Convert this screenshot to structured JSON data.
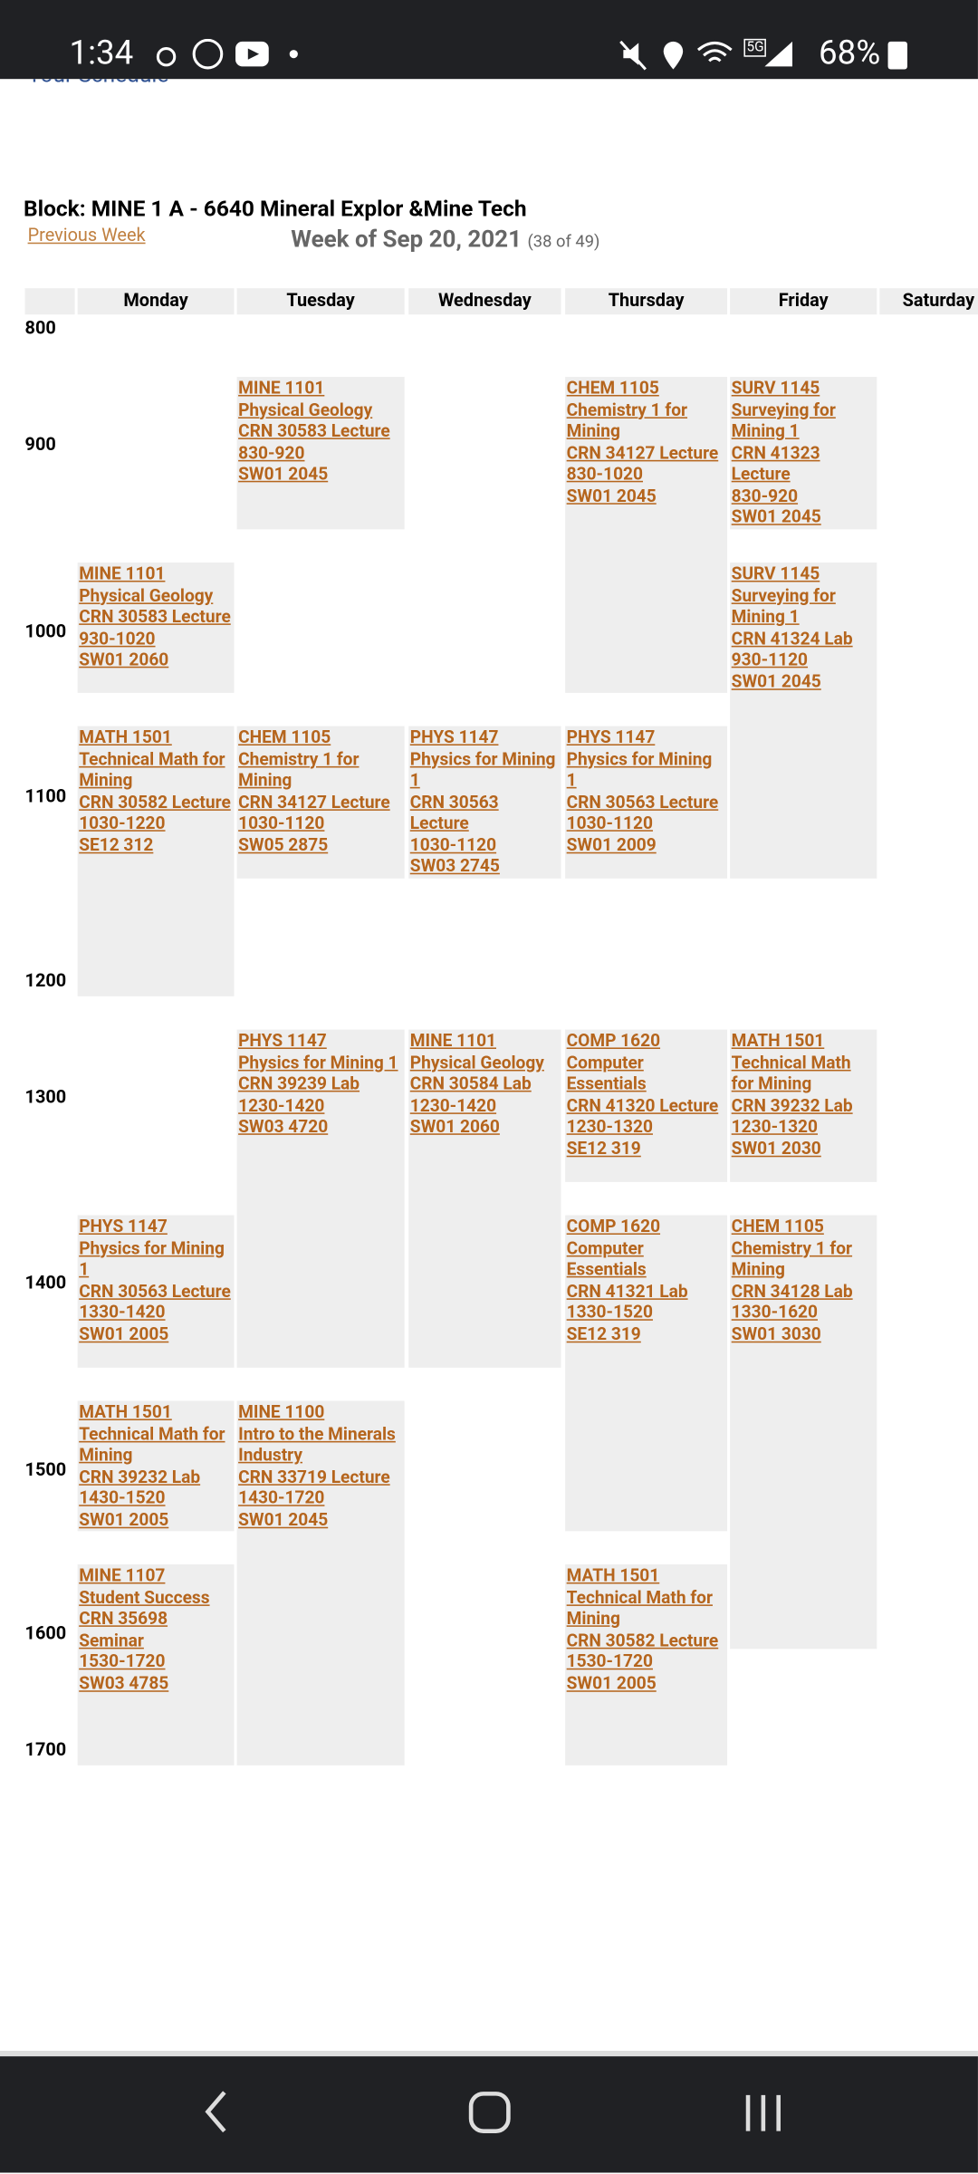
{
  "status_bar": {
    "time": "1:34",
    "network": "5G",
    "battery": "68%"
  },
  "header": {
    "partial_title": "Your Schedule",
    "block": "Block: MINE 1 A - 6640 Mineral Explor &Mine Tech",
    "previous_week": "Previous Week",
    "week": "Week of Sep 20, 2021",
    "week_count": "(38 of 49)"
  },
  "hours": [
    "800",
    "900",
    "1000",
    "1100",
    "1200",
    "1300",
    "1400",
    "1500",
    "1600",
    "1700"
  ],
  "days": [
    {
      "name": "Monday",
      "events": [
        [
          "MINE 1101",
          "Physical Geology",
          "CRN 30583 Lecture",
          "930-1020",
          "SW01 2060"
        ],
        [
          "MATH 1501",
          "Technical Math for Mining",
          "CRN 30582 Lecture",
          "1030-1220",
          "SE12 312"
        ],
        [
          "PHYS 1147",
          "Physics for Mining 1",
          "CRN 30563 Lecture",
          "1330-1420",
          "SW01 2005"
        ],
        [
          "MATH 1501",
          "Technical Math for Mining",
          "CRN 39232 Lab",
          "1430-1520",
          "SW01 2005"
        ],
        [
          "MINE 1107",
          "Student Success",
          "CRN 35698 Seminar",
          "1530-1720",
          "SW03 4785"
        ]
      ]
    },
    {
      "name": "Tuesday",
      "events": [
        [
          "MINE 1101",
          "Physical Geology",
          "CRN 30583 Lecture",
          "830-920",
          "SW01 2045"
        ],
        [
          "CHEM 1105",
          "Chemistry 1 for Mining",
          "CRN 34127 Lecture",
          "1030-1120",
          "SW05 2875"
        ],
        [
          "PHYS 1147",
          "Physics for Mining 1",
          "CRN 39239 Lab",
          "1230-1420",
          "SW03 4720"
        ],
        [
          "MINE 1100",
          "Intro to the Minerals Industry",
          "CRN 33719 Lecture",
          "1430-1720",
          "SW01 2045"
        ]
      ]
    },
    {
      "name": "Wednesday",
      "events": [
        [
          "PHYS 1147",
          "Physics for Mining 1",
          "CRN 30563 Lecture",
          "1030-1120",
          "SW03 2745"
        ],
        [
          "MINE 1101",
          "Physical Geology",
          "CRN 30584 Lab",
          "1230-1420",
          "SW01 2060"
        ]
      ]
    },
    {
      "name": "Thursday",
      "events": [
        [
          "CHEM 1105",
          "Chemistry 1 for Mining",
          "CRN 34127 Lecture",
          "830-1020",
          "SW01 2045"
        ],
        [
          "PHYS 1147",
          "Physics for Mining 1",
          "CRN 30563 Lecture",
          "1030-1120",
          "SW01 2009"
        ],
        [
          "COMP 1620",
          "Computer Essentials",
          "CRN 41320 Lecture",
          "1230-1320",
          "SE12 319"
        ],
        [
          "COMP 1620",
          "Computer Essentials",
          "CRN 41321 Lab",
          "1330-1520",
          "SE12 319"
        ],
        [
          "MATH 1501",
          "Technical Math for Mining",
          "CRN 30582 Lecture",
          "1530-1720",
          "SW01 2005"
        ]
      ]
    },
    {
      "name": "Friday",
      "events": [
        [
          "SURV 1145",
          "Surveying for Mining 1",
          "CRN 41323 Lecture",
          "830-920",
          "SW01 2045"
        ],
        [
          "SURV 1145",
          "Surveying for Mining 1",
          "CRN 41324 Lab",
          "930-1120",
          "SW01 2045"
        ],
        [
          "MATH 1501",
          "Technical Math for Mining",
          "CRN 39232 Lab",
          "1230-1320",
          "SW01 2030"
        ],
        [
          "CHEM 1105",
          "Chemistry 1 for Mining",
          "CRN 34128 Lab",
          "1330-1620",
          "SW01 3030"
        ]
      ]
    },
    {
      "name": "Saturday",
      "events": []
    }
  ]
}
